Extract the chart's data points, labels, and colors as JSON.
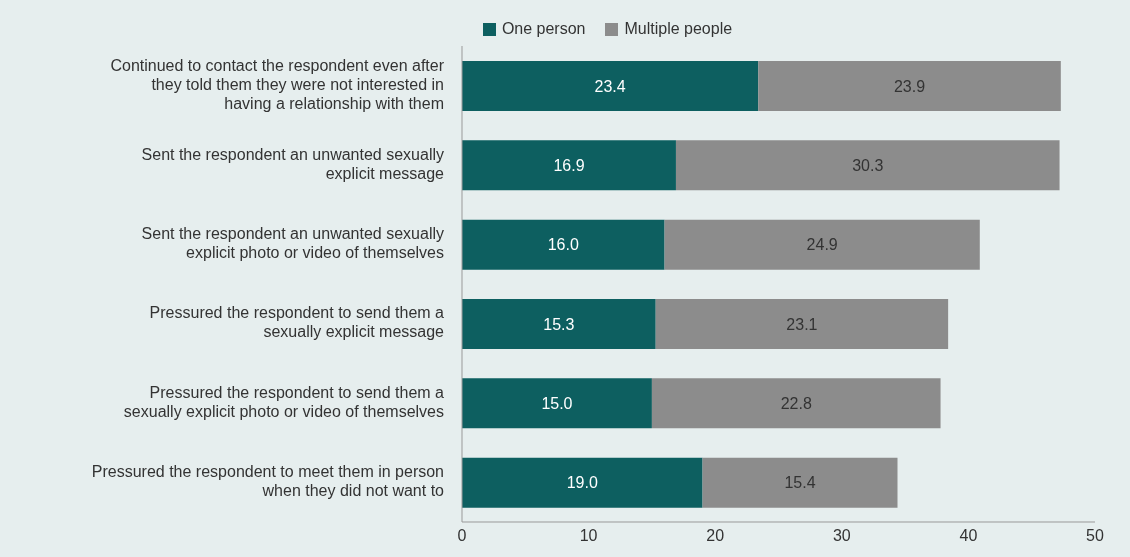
{
  "chart_data": {
    "type": "bar",
    "orientation": "horizontal",
    "stacked": true,
    "categories": [
      "Continued to contact the respondent even after they told them they were not interested in having a relationship with them",
      "Sent the respondent an unwanted sexually explicit message",
      "Sent the respondent an unwanted sexually explicit photo or video of themselves",
      "Pressured the respondent to send them a sexually explicit message",
      "Pressured the respondent to send them a sexually explicit photo or video of themselves",
      "Pressured the respondent to meet them in person when they did not want to"
    ],
    "series": [
      {
        "name": "One person",
        "color": "#0d5f60",
        "values": [
          23.4,
          16.9,
          16,
          15.3,
          15,
          19
        ],
        "value_labels": [
          "23.4",
          "16.9",
          "16.0",
          "15.3",
          "15.0",
          "19.0"
        ]
      },
      {
        "name": "Multiple people",
        "color": "#8c8c8c",
        "values": [
          23.9,
          30.3,
          24.9,
          23.1,
          22.8,
          15.4
        ],
        "value_labels": [
          "23.9",
          "30.3",
          "24.9",
          "23.1",
          "22.8",
          "15.4"
        ]
      }
    ],
    "xlim": [
      0,
      50
    ],
    "xticks": [
      0,
      10,
      20,
      30,
      40,
      50
    ],
    "legend": "top"
  }
}
